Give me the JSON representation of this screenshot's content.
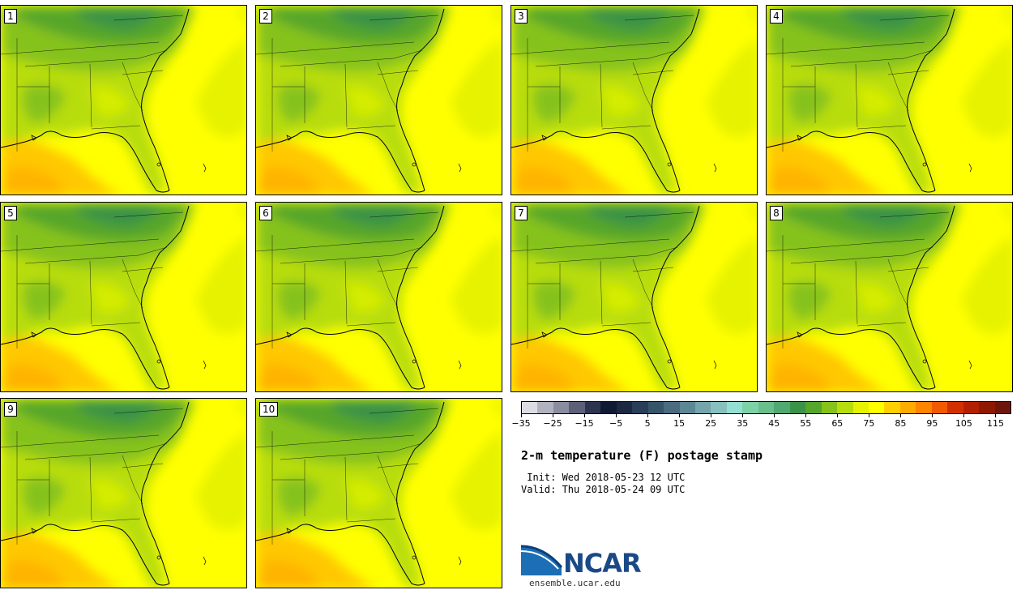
{
  "panels": [
    {
      "label": "1"
    },
    {
      "label": "2"
    },
    {
      "label": "3"
    },
    {
      "label": "4"
    },
    {
      "label": "5"
    },
    {
      "label": "6"
    },
    {
      "label": "7"
    },
    {
      "label": "8"
    },
    {
      "label": "9"
    },
    {
      "label": "10"
    }
  ],
  "title": "2-m temperature (F) postage stamp",
  "init_line": " Init: Wed 2018-05-23 12 UTC",
  "valid_line": "Valid: Thu 2018-05-24 09 UTC",
  "colorbar": {
    "tick_labels": [
      "−35",
      "−25",
      "−15",
      "−5",
      "5",
      "15",
      "25",
      "35",
      "45",
      "55",
      "65",
      "75",
      "85",
      "95",
      "105",
      "115"
    ],
    "min": -35,
    "max": 120,
    "step": 5,
    "colors": [
      "#dcdde4",
      "#b1b2c0",
      "#8a8c9f",
      "#5d6079",
      "#2c3450",
      "#0f1a34",
      "#1a2842",
      "#293e58",
      "#375569",
      "#4a6b80",
      "#5e8796",
      "#75a4ab",
      "#88c0bd",
      "#93dfd2",
      "#7dd1a6",
      "#69be8c",
      "#4fa970",
      "#3b9347",
      "#56a62c",
      "#86c21a",
      "#b8dd0c",
      "#e6f200",
      "#ffff00",
      "#ffd000",
      "#ffaa00",
      "#ff8400",
      "#f05a00",
      "#d23000",
      "#b41f00",
      "#8f1800",
      "#6e160c"
    ]
  },
  "logo_text": "NCAR",
  "site": "ensemble.ucar.edu"
}
